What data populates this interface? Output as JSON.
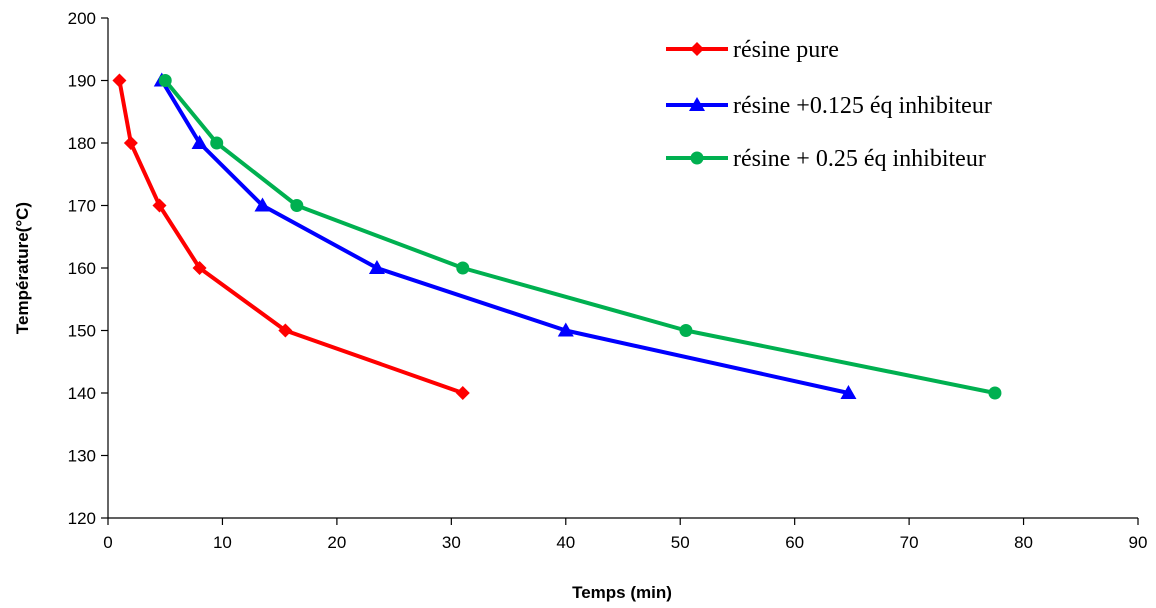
{
  "chart_data": {
    "type": "line",
    "title": "",
    "xlabel": "Temps (min)",
    "ylabel": "Température(°C)",
    "xlim": [
      0,
      90
    ],
    "ylim": [
      120,
      200
    ],
    "xticks": [
      "0",
      "10",
      "20",
      "30",
      "40",
      "50",
      "60",
      "70",
      "80",
      "90"
    ],
    "yticks": [
      "120",
      "130",
      "140",
      "150",
      "160",
      "170",
      "180",
      "190",
      "200"
    ],
    "grid": false,
    "legend_position": "top-right",
    "series": [
      {
        "name": "résine pure",
        "color": "#ff0000",
        "marker": "diamond",
        "x": [
          1,
          2,
          4.5,
          8,
          15.5,
          31
        ],
        "y": [
          190,
          180,
          170,
          160,
          150,
          140
        ]
      },
      {
        "name": "résine +0.125 éq inhibiteur",
        "color": "#0000ff",
        "marker": "triangle",
        "x": [
          4.7,
          8,
          13.5,
          23.5,
          40,
          64.7
        ],
        "y": [
          190,
          180,
          170,
          160,
          150,
          140
        ]
      },
      {
        "name": "résine + 0.25 éq inhibiteur",
        "color": "#00b050",
        "marker": "circle",
        "x": [
          5,
          9.5,
          16.5,
          31,
          50.5,
          77.5
        ],
        "y": [
          190,
          180,
          170,
          160,
          150,
          140
        ]
      }
    ]
  }
}
